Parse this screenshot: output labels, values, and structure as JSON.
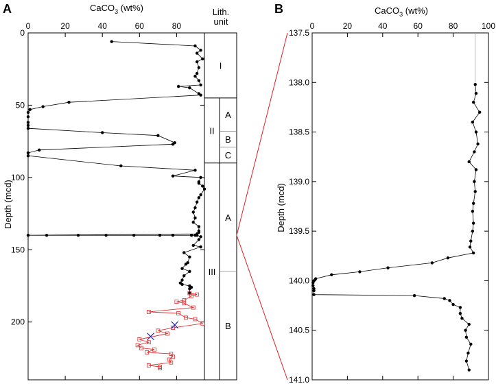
{
  "panels": {
    "a_letter": "A",
    "b_letter": "B",
    "lith_header_line1": "Lith.",
    "lith_header_line2": "unit"
  },
  "colors": {
    "main_line": "#000000",
    "red_series": "#e03030",
    "blue_marker": "#1a1acc",
    "zoom_lines": "#e02020",
    "hilite": "#bbbbbb"
  },
  "chart_data": [
    {
      "id": "A",
      "type": "line",
      "title": "",
      "xlabel": "CaCO3 (wt%)",
      "xlabel_main": "CaCO",
      "xlabel_sub": "3",
      "xlabel_tail": " (wt%)",
      "ylabel": "Depth (mcd)",
      "xlim": [
        0,
        95
      ],
      "ylim": [
        0,
        240
      ],
      "y_inverted": true,
      "x_ticks": [
        0,
        20,
        40,
        60,
        80
      ],
      "y_ticks": [
        0,
        50,
        100,
        150,
        200
      ],
      "grid": false,
      "series": [
        {
          "style": "black-dots",
          "points": [
            [
              45,
              6
            ],
            [
              90,
              9
            ],
            [
              93,
              12
            ],
            [
              91,
              14
            ],
            [
              94,
              18
            ],
            [
              91,
              20
            ],
            [
              92,
              24
            ],
            [
              91,
              28
            ],
            [
              90,
              30
            ],
            [
              92,
              33
            ],
            [
              93,
              36
            ],
            [
              81,
              37
            ],
            [
              87,
              38
            ],
            [
              92,
              42
            ],
            [
              93,
              43
            ],
            [
              22,
              48
            ],
            [
              8,
              51
            ],
            [
              1,
              53
            ],
            [
              0,
              55
            ],
            [
              0,
              58
            ],
            [
              0,
              62
            ],
            [
              0,
              64
            ],
            [
              0,
              66
            ],
            [
              40,
              69
            ],
            [
              70,
              71
            ],
            [
              79,
              76
            ],
            [
              78,
              77
            ],
            [
              6,
              81
            ],
            [
              0,
              83
            ],
            [
              0,
              85
            ],
            [
              50,
              92
            ],
            [
              90,
              95
            ],
            [
              78,
              99
            ],
            [
              93,
              100
            ],
            [
              92,
              103
            ],
            [
              92,
              104
            ],
            [
              94,
              106
            ],
            [
              95,
              108
            ],
            [
              93,
              112
            ],
            [
              92,
              114
            ],
            [
              91,
              117
            ],
            [
              90,
              121
            ],
            [
              89,
              124
            ],
            [
              90,
              128
            ],
            [
              89,
              131
            ],
            [
              92,
              134
            ],
            [
              92,
              137
            ],
            [
              92,
              138
            ],
            [
              91,
              139
            ],
            [
              0,
              140
            ],
            [
              10,
              140
            ],
            [
              27,
              140
            ],
            [
              42,
              140
            ],
            [
              57,
              140
            ],
            [
              71,
              140
            ],
            [
              78,
              140
            ],
            [
              88,
              140
            ],
            [
              90,
              140
            ],
            [
              91,
              140
            ],
            [
              93,
              141
            ],
            [
              92,
              143
            ],
            [
              89,
              147
            ],
            [
              93,
              148
            ],
            [
              84,
              152
            ],
            [
              87,
              155
            ],
            [
              86,
              159
            ],
            [
              85,
              160
            ],
            [
              83,
              163
            ],
            [
              87,
              165
            ],
            [
              84,
              168
            ],
            [
              83,
              171
            ],
            [
              82,
              173
            ],
            [
              83,
              174
            ],
            [
              87,
              175
            ],
            [
              88,
              176
            ],
            [
              87,
              177
            ],
            [
              87,
              180
            ]
          ]
        },
        {
          "style": "red-open-squares",
          "points": [
            [
              87,
              180
            ],
            [
              91,
              181
            ],
            [
              88,
              182
            ],
            [
              84,
              185
            ],
            [
              80,
              186
            ],
            [
              84,
              187
            ],
            [
              89,
              190
            ],
            [
              65,
              193
            ],
            [
              81,
              194
            ],
            [
              85,
              197
            ],
            [
              90,
              198
            ],
            [
              94,
              201
            ],
            [
              78,
              204
            ],
            [
              70,
              206
            ],
            [
              75,
              208
            ],
            [
              60,
              212
            ],
            [
              65,
              214
            ],
            [
              59,
              216
            ],
            [
              61,
              218
            ],
            [
              68,
              219
            ],
            [
              64,
              221
            ],
            [
              77,
              222
            ],
            [
              78,
              224
            ],
            [
              76,
              226
            ],
            [
              77,
              228
            ],
            [
              65,
              230
            ],
            [
              71,
              231
            ],
            [
              71,
              232
            ]
          ]
        },
        {
          "style": "blue-x",
          "points": [
            [
              79,
              202
            ],
            [
              66,
              210
            ]
          ]
        }
      ]
    },
    {
      "id": "B",
      "type": "line",
      "title": "",
      "xlabel": "CaCO3 (wt%)",
      "xlabel_main": "CaCO",
      "xlabel_sub": "3",
      "xlabel_tail": " (wt%)",
      "ylabel": "Depth (mcd)",
      "xlim": [
        0,
        100
      ],
      "ylim": [
        137.5,
        141.0
      ],
      "y_inverted": true,
      "x_ticks": [
        0,
        20,
        40,
        60,
        80,
        100
      ],
      "x_tick_labels": [
        "0",
        "20",
        "40",
        "60",
        "80",
        "100"
      ],
      "y_ticks": [
        137.5,
        138.0,
        138.5,
        139.0,
        139.5,
        140.0,
        140.5,
        141.0
      ],
      "y_tick_labels": [
        "137.5",
        "138.0",
        "138.5",
        "139.0",
        "139.5",
        "140.0",
        "140.5",
        "141.0"
      ],
      "grid": false,
      "series": [
        {
          "style": "black-dots",
          "points": [
            [
              92.5,
              138.02
            ],
            [
              93,
              138.11
            ],
            [
              91.5,
              138.2
            ],
            [
              95,
              138.3
            ],
            [
              91,
              138.4
            ],
            [
              93,
              138.5
            ],
            [
              94,
              138.62
            ],
            [
              92,
              138.7
            ],
            [
              89,
              138.8
            ],
            [
              93,
              138.88
            ],
            [
              92,
              139.0
            ],
            [
              92.5,
              139.1
            ],
            [
              91.5,
              139.22
            ],
            [
              91,
              139.3
            ],
            [
              91.5,
              139.42
            ],
            [
              91,
              139.5
            ],
            [
              90,
              139.6
            ],
            [
              89.5,
              139.66
            ],
            [
              91.5,
              139.72
            ],
            [
              77,
              139.77
            ],
            [
              68,
              139.82
            ],
            [
              43,
              139.87
            ],
            [
              27,
              139.91
            ],
            [
              11,
              139.94
            ],
            [
              2,
              139.98
            ],
            [
              1,
              140.0
            ],
            [
              0.5,
              140.02
            ],
            [
              0.5,
              140.05
            ],
            [
              1,
              140.08
            ],
            [
              1,
              140.1
            ],
            [
              1,
              140.14
            ],
            [
              58,
              140.15
            ],
            [
              75,
              140.18
            ],
            [
              78,
              140.2
            ],
            [
              80,
              140.24
            ],
            [
              84,
              140.27
            ],
            [
              84,
              140.33
            ],
            [
              85,
              140.38
            ],
            [
              89,
              140.44
            ],
            [
              87,
              140.5
            ],
            [
              87.5,
              140.57
            ],
            [
              90,
              140.64
            ],
            [
              88.5,
              140.73
            ],
            [
              87.5,
              140.81
            ],
            [
              89,
              140.9
            ]
          ]
        }
      ],
      "guide_line": {
        "x": 92.5,
        "y_from": 137.5,
        "y_to": 138.0
      }
    }
  ],
  "lith_units": [
    {
      "label": "I",
      "top": 0,
      "base": 45
    },
    {
      "label": "II",
      "top": 45,
      "base": 90,
      "subunits": [
        {
          "label": "A",
          "top": 45,
          "base": 68
        },
        {
          "label": "B",
          "top": 68,
          "base": 79
        },
        {
          "label": "C",
          "top": 79,
          "base": 90
        }
      ]
    },
    {
      "label": "III",
      "top": 90,
      "base": 240,
      "subunits": [
        {
          "label": "A",
          "top": 90,
          "base": 165
        },
        {
          "label": "B",
          "top": 165,
          "base": 240
        }
      ]
    }
  ],
  "zoom": {
    "target_depth": 140
  }
}
